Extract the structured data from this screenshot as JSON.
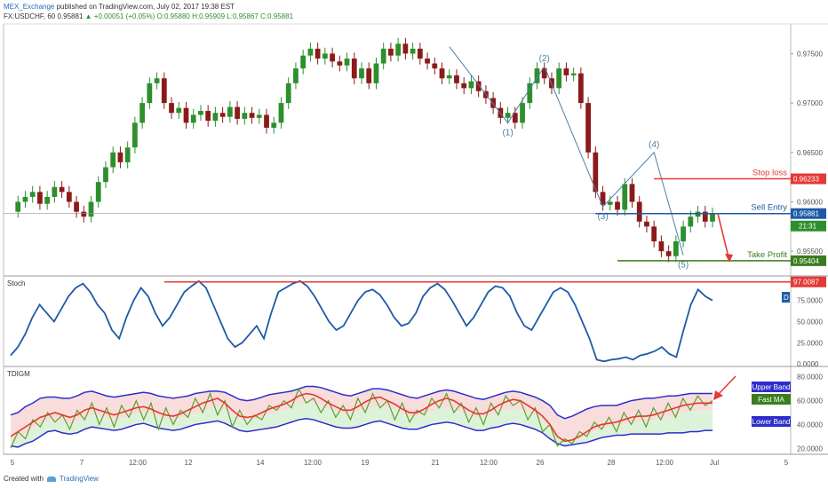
{
  "header": {
    "publisher": "MEX_Exchange",
    "published_text": "published on TradingView.com, July 02, 2017 19:38 EST",
    "symbol_line": "FX:USDCHF, 60",
    "last": "0.95881",
    "change": "▲ +0.00051 (+0.05%)",
    "open": "O:0.95880",
    "high": "H:0.95909",
    "low": "L:0.95867",
    "close": "C:0.95881"
  },
  "footer": {
    "created_with": "Created with",
    "brand": "TradingView"
  },
  "colors": {
    "up_candle": "#2d8f2d",
    "down_candle": "#8b1a1a",
    "stop_loss": "#e53935",
    "sell_entry": "#1e5aa8",
    "take_profit": "#3a7d1e",
    "wave_lines": "#4e7fa8",
    "stoch": "#1e5aa8",
    "upper_band": "#2d2dcc",
    "fast_ma": "#e03a2a",
    "tdi_green": "#5aa02c"
  },
  "chart_data": [
    {
      "type": "candlestick",
      "title": "",
      "y_ticks": [
        "0.97500",
        "0.97000",
        "0.96500",
        "0.96000",
        "0.95500"
      ],
      "ylim": [
        0.9525,
        0.978
      ],
      "x_ticks": [
        "5",
        "7",
        "12:00",
        "12",
        "14",
        "12:00",
        "19",
        "21",
        "12:00",
        "26",
        "28",
        "12:00",
        "Jul",
        "5"
      ],
      "price_path": [
        0.959,
        0.96,
        0.9605,
        0.961,
        0.9598,
        0.9605,
        0.9615,
        0.961,
        0.96,
        0.959,
        0.9585,
        0.96,
        0.962,
        0.9635,
        0.965,
        0.964,
        0.9655,
        0.968,
        0.97,
        0.972,
        0.9725,
        0.97,
        0.969,
        0.9695,
        0.968,
        0.9688,
        0.9692,
        0.9682,
        0.969,
        0.9686,
        0.9696,
        0.9684,
        0.969,
        0.9685,
        0.9688,
        0.9675,
        0.968,
        0.97,
        0.972,
        0.9735,
        0.9748,
        0.9755,
        0.9745,
        0.975,
        0.9742,
        0.9738,
        0.9745,
        0.9725,
        0.9735,
        0.972,
        0.974,
        0.9755,
        0.9748,
        0.976,
        0.975,
        0.9755,
        0.9745,
        0.974,
        0.9735,
        0.9725,
        0.9728,
        0.972,
        0.9715,
        0.9722,
        0.9712,
        0.9705,
        0.9695,
        0.9685,
        0.969,
        0.968,
        0.97,
        0.972,
        0.9735,
        0.9725,
        0.9715,
        0.9735,
        0.9728,
        0.973,
        0.97,
        0.965,
        0.961,
        0.9597,
        0.96,
        0.9592,
        0.9618,
        0.96,
        0.958,
        0.9575,
        0.956,
        0.955,
        0.9545,
        0.956,
        0.9575,
        0.9585,
        0.959,
        0.958,
        0.9588
      ],
      "annotations": {
        "waves": [
          {
            "label": "(1)",
            "price": 0.968
          },
          {
            "label": "(2)",
            "price": 0.9737
          },
          {
            "label": "(3)",
            "price": 0.9595
          },
          {
            "label": "(4)",
            "price": 0.965
          },
          {
            "label": "(5)",
            "price": 0.9546
          }
        ],
        "stop_loss": {
          "label": "Stop loss",
          "value": 0.96233,
          "tag": "0.96233"
        },
        "sell_entry": {
          "label": "Sell Entry",
          "value": 0.95881,
          "tag": "0.95881",
          "countdown": "21:31"
        },
        "take_profit": {
          "label": "Take Profit",
          "value": 0.95404,
          "tag": "0.95404"
        }
      }
    },
    {
      "type": "line",
      "title": "Stoch",
      "y_ticks": [
        "75.0000",
        "50.0000",
        "25.0000",
        "0.0000"
      ],
      "ylim": [
        -3,
        103
      ],
      "series": [
        {
          "name": "",
          "values": [
            10,
            20,
            35,
            55,
            70,
            60,
            50,
            65,
            80,
            90,
            95,
            85,
            70,
            60,
            40,
            30,
            55,
            75,
            90,
            80,
            60,
            45,
            55,
            70,
            85,
            92,
            98,
            90,
            70,
            50,
            30,
            20,
            25,
            35,
            45,
            30,
            60,
            85,
            90,
            95,
            98,
            92,
            80,
            65,
            50,
            40,
            45,
            60,
            75,
            85,
            88,
            82,
            70,
            55,
            45,
            48,
            60,
            80,
            90,
            95,
            88,
            75,
            60,
            45,
            55,
            70,
            85,
            92,
            90,
            80,
            60,
            45,
            40,
            55,
            70,
            85,
            90,
            85,
            70,
            50,
            30,
            5,
            3,
            5,
            6,
            8,
            5,
            10,
            12,
            15,
            20,
            12,
            8,
            40,
            70,
            88,
            80,
            75
          ]
        }
      ],
      "max_line": {
        "value": 97.0087,
        "tag": "97.0087"
      },
      "legend_tag": "D"
    },
    {
      "type": "line",
      "title": "TDIGM",
      "y_ticks": [
        "80.0000",
        "60.0000",
        "40.0000",
        "20.0000"
      ],
      "ylim": [
        15,
        88
      ],
      "series": [
        {
          "name": "Upper Band",
          "values": [
            48,
            50,
            55,
            58,
            62,
            63,
            63,
            62,
            62,
            64,
            67,
            68,
            66,
            64,
            63,
            64,
            65,
            66,
            67,
            66,
            64,
            63,
            62,
            63,
            64,
            66,
            67,
            68,
            68,
            67,
            64,
            61,
            60,
            61,
            63,
            65,
            66,
            67,
            68,
            70,
            72,
            72,
            71,
            69,
            67,
            65,
            64,
            66,
            68,
            70,
            70,
            69,
            67,
            65,
            63,
            62,
            64,
            66,
            68,
            69,
            68,
            66,
            64,
            62,
            61,
            63,
            65,
            67,
            68,
            67,
            65,
            63,
            60,
            56,
            48,
            45,
            47,
            50,
            53,
            55,
            56,
            56,
            56,
            58,
            60,
            61,
            62,
            62,
            63,
            64,
            64,
            65,
            66,
            66,
            66,
            66
          ]
        },
        {
          "name": "Fast MA",
          "values": [
            30,
            34,
            38,
            42,
            46,
            48,
            50,
            48,
            46,
            48,
            52,
            54,
            52,
            50,
            48,
            50,
            52,
            54,
            55,
            53,
            50,
            48,
            47,
            49,
            52,
            55,
            58,
            60,
            62,
            58,
            52,
            47,
            46,
            47,
            50,
            53,
            55,
            57,
            60,
            64,
            66,
            65,
            62,
            58,
            55,
            52,
            52,
            55,
            59,
            62,
            63,
            60,
            57,
            53,
            50,
            50,
            53,
            57,
            60,
            62,
            60,
            56,
            52,
            49,
            49,
            52,
            56,
            59,
            61,
            60,
            56,
            52,
            47,
            40,
            30,
            26,
            27,
            30,
            34,
            38,
            40,
            41,
            42,
            44,
            46,
            47,
            47,
            48,
            50,
            52,
            54,
            56,
            57,
            58,
            58,
            58
          ]
        },
        {
          "name": "",
          "values": [
            25,
            28,
            32,
            36,
            40,
            42,
            43,
            42,
            40,
            42,
            46,
            48,
            47,
            45,
            44,
            45,
            47,
            49,
            50,
            49,
            47,
            45,
            44,
            45,
            47,
            49,
            51,
            53,
            54,
            52,
            48,
            44,
            43,
            44,
            46,
            48,
            50,
            52,
            54,
            57,
            59,
            58,
            56,
            53,
            51,
            49,
            49,
            51,
            53,
            55,
            56,
            54,
            52,
            49,
            47,
            47,
            49,
            51,
            53,
            54,
            53,
            50,
            48,
            46,
            46,
            48,
            50,
            52,
            53,
            52,
            50,
            47,
            43,
            36,
            28,
            25,
            26,
            28,
            31,
            34,
            36,
            38,
            39,
            40,
            41,
            42,
            42,
            43,
            44,
            46,
            48,
            50,
            51,
            52,
            52,
            52
          ]
        },
        {
          "name": "Lower Band",
          "values": [
            22,
            21,
            24,
            26,
            30,
            34,
            35,
            33,
            32,
            33,
            36,
            38,
            37,
            36,
            35,
            36,
            38,
            40,
            41,
            39,
            37,
            36,
            35,
            36,
            38,
            40,
            41,
            42,
            43,
            41,
            38,
            35,
            34,
            35,
            36,
            37,
            38,
            40,
            42,
            44,
            45,
            44,
            42,
            40,
            38,
            37,
            37,
            38,
            40,
            42,
            43,
            41,
            39,
            37,
            36,
            36,
            38,
            40,
            41,
            42,
            41,
            39,
            37,
            35,
            35,
            37,
            38,
            40,
            41,
            40,
            38,
            36,
            33,
            28,
            24,
            22,
            23,
            24,
            25,
            27,
            29,
            30,
            31,
            31,
            32,
            32,
            32,
            32,
            32,
            33,
            33,
            33,
            34,
            34,
            35,
            35
          ]
        },
        {
          "name": "",
          "values": [
            20,
            34,
            28,
            44,
            38,
            50,
            42,
            48,
            36,
            52,
            44,
            58,
            40,
            54,
            38,
            56,
            46,
            60,
            44,
            58,
            36,
            54,
            40,
            52,
            46,
            62,
            50,
            66,
            48,
            60,
            38,
            52,
            40,
            48,
            44,
            56,
            52,
            60,
            54,
            70,
            58,
            62,
            50,
            60,
            46,
            56,
            44,
            62,
            50,
            66,
            54,
            60,
            44,
            58,
            42,
            52,
            48,
            62,
            54,
            66,
            50,
            58,
            42,
            54,
            40,
            58,
            48,
            64,
            56,
            60,
            44,
            54,
            34,
            40,
            22,
            28,
            24,
            34,
            30,
            42,
            36,
            46,
            34,
            50,
            40,
            52,
            38,
            54,
            44,
            58,
            46,
            62,
            52,
            64,
            56,
            60
          ]
        }
      ],
      "band_tags": [
        "Upper Band",
        "Fast MA",
        "Lower Band"
      ]
    }
  ]
}
